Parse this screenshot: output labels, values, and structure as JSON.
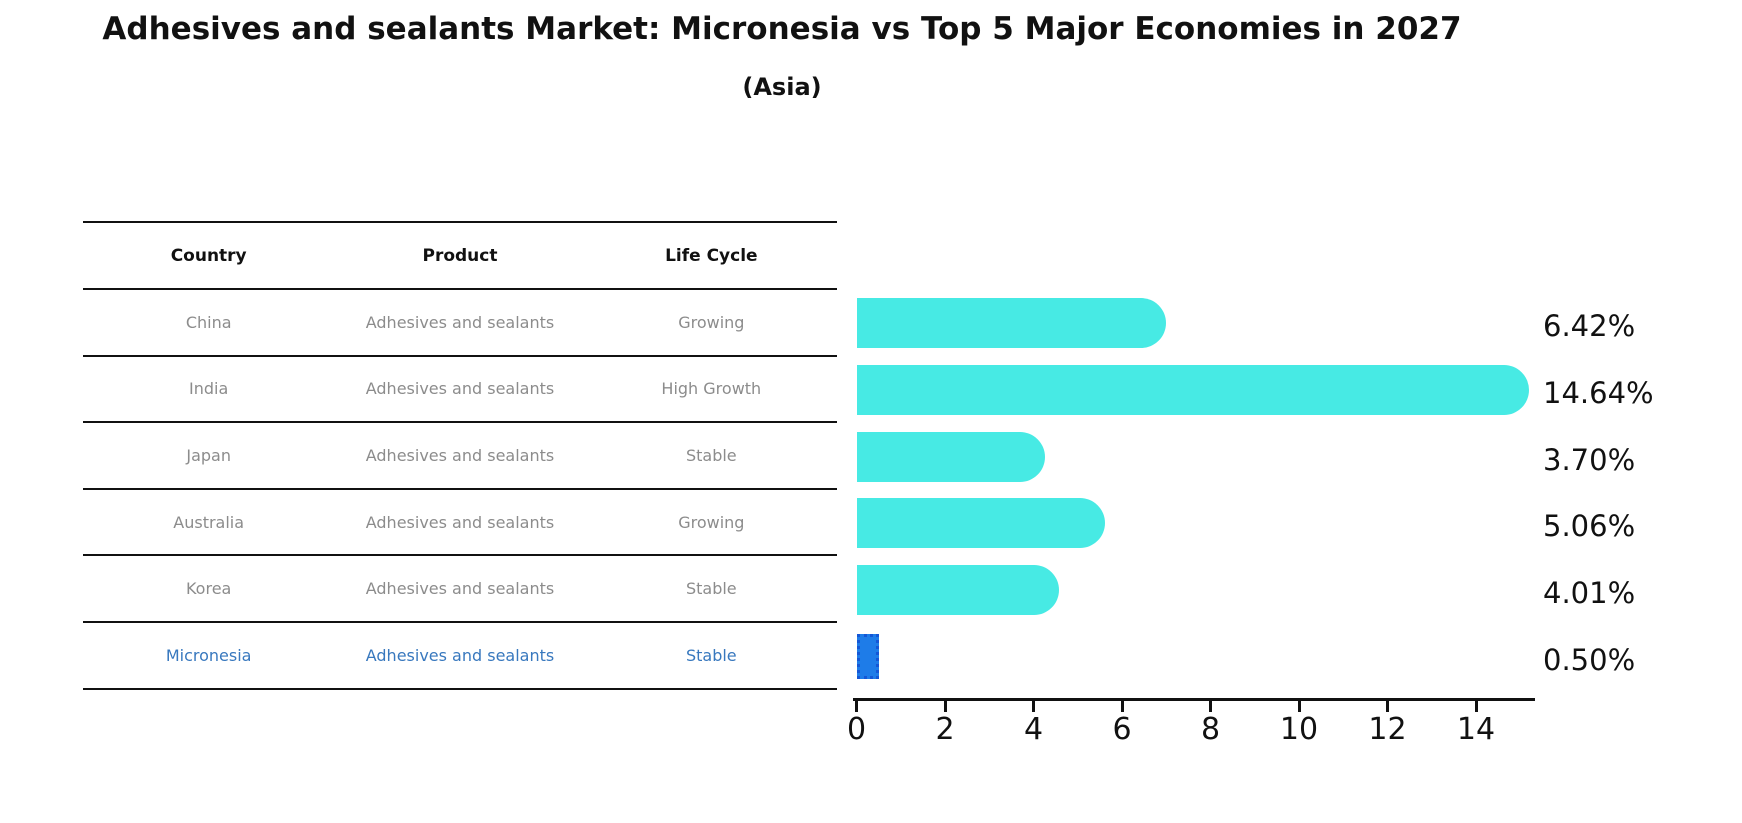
{
  "title": "Adhesives and sealants Market: Micronesia vs Top 5 Major Economies in 2027",
  "subtitle": "(Asia)",
  "table": {
    "headers": [
      "Country",
      "Product",
      "Life Cycle"
    ],
    "rows": [
      {
        "country": "China",
        "product": "Adhesives and sealants",
        "life_cycle": "Growing",
        "highlight": false
      },
      {
        "country": "India",
        "product": "Adhesives and sealants",
        "life_cycle": "High Growth",
        "highlight": false
      },
      {
        "country": "Japan",
        "product": "Adhesives and sealants",
        "life_cycle": "Stable",
        "highlight": false
      },
      {
        "country": "Australia",
        "product": "Adhesives and sealants",
        "life_cycle": "Growing",
        "highlight": false
      },
      {
        "country": "Korea",
        "product": "Adhesives and sealants",
        "life_cycle": "Stable",
        "highlight": false
      },
      {
        "country": "Micronesia",
        "product": "Adhesives and sealants",
        "life_cycle": "Stable",
        "highlight": true
      }
    ]
  },
  "chart_data": {
    "type": "bar",
    "orientation": "horizontal",
    "title": "Adhesives and sealants Market: Micronesia vs Top 5 Major Economies in 2027",
    "subtitle": "(Asia)",
    "categories": [
      "China",
      "India",
      "Japan",
      "Australia",
      "Korea",
      "Micronesia"
    ],
    "values": [
      6.42,
      14.64,
      3.7,
      5.06,
      4.01,
      0.5
    ],
    "value_labels": [
      "6.42%",
      "14.64%",
      "3.70%",
      "5.06%",
      "4.01%",
      "0.50%"
    ],
    "highlight_index": 5,
    "xlabel": "",
    "ylabel": "",
    "xlim": [
      0,
      15.4
    ],
    "x_ticks": [
      0,
      2,
      4,
      6,
      8,
      10,
      12,
      14
    ],
    "x_tick_labels": [
      "0",
      "2",
      "4",
      "6",
      "8",
      "10",
      "12",
      "14"
    ],
    "grid": false,
    "legend": false,
    "colors": {
      "bar": "#47eae4",
      "highlight_bar": "#1e7ce8",
      "highlight_bar_edge": "#1457d6",
      "highlight_text": "#3878be",
      "table_text": "#8c8c8c",
      "axis_text": "#111111"
    }
  }
}
